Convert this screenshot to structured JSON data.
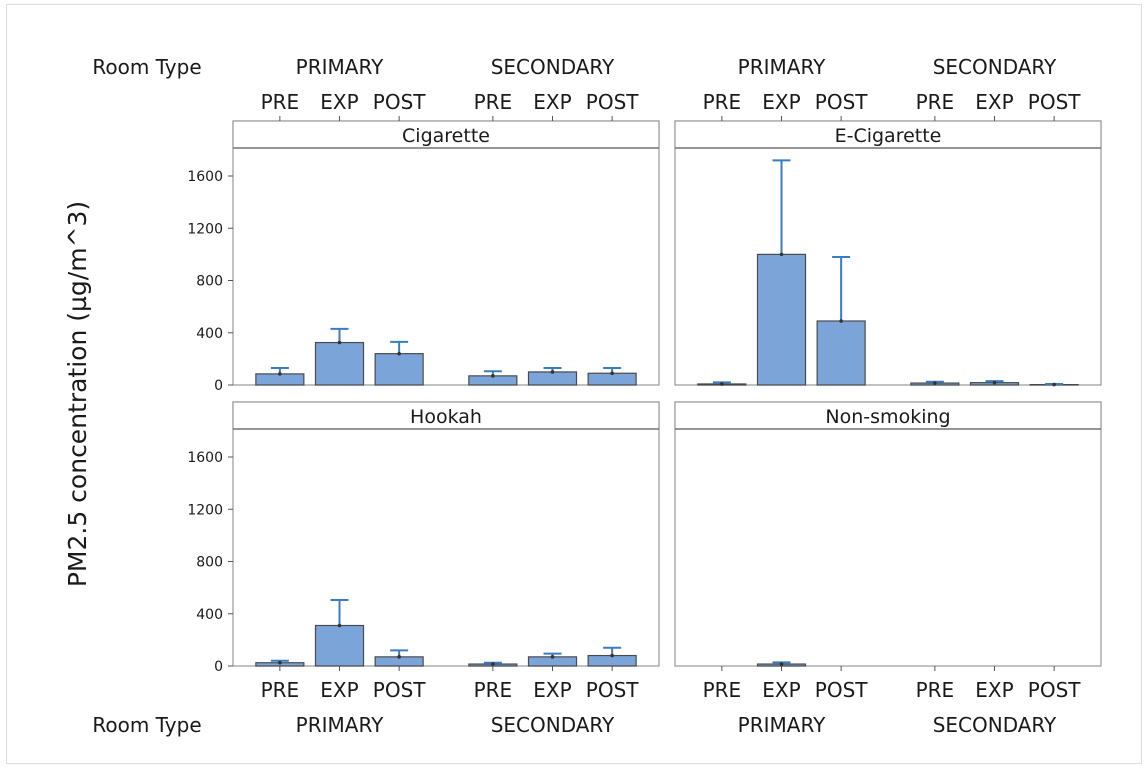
{
  "chart_data": {
    "type": "bar",
    "ylabel": "PM2.5 concentration (µg/m^3)",
    "group_label": "Room Type",
    "room_types": [
      "PRIMARY",
      "SECONDARY"
    ],
    "phases": [
      "PRE",
      "EXP",
      "POST"
    ],
    "ylim": [
      0,
      1800
    ],
    "yticks": [
      0,
      400,
      800,
      1200,
      1600
    ],
    "grid": false,
    "bar_color": "#7ba4d9",
    "errorbar_color": "#3a7cc4",
    "panels": [
      {
        "name": "Cigarette",
        "values": [
          {
            "room": "PRIMARY",
            "phase": "PRE",
            "value": 85,
            "error_upper": 130
          },
          {
            "room": "PRIMARY",
            "phase": "EXP",
            "value": 325,
            "error_upper": 430
          },
          {
            "room": "PRIMARY",
            "phase": "POST",
            "value": 240,
            "error_upper": 330
          },
          {
            "room": "SECONDARY",
            "phase": "PRE",
            "value": 70,
            "error_upper": 105
          },
          {
            "room": "SECONDARY",
            "phase": "EXP",
            "value": 100,
            "error_upper": 130
          },
          {
            "room": "SECONDARY",
            "phase": "POST",
            "value": 90,
            "error_upper": 130
          }
        ]
      },
      {
        "name": "E-Cigarette",
        "values": [
          {
            "room": "PRIMARY",
            "phase": "PRE",
            "value": 8,
            "error_upper": 20
          },
          {
            "room": "PRIMARY",
            "phase": "EXP",
            "value": 1000,
            "error_upper": 1720
          },
          {
            "room": "PRIMARY",
            "phase": "POST",
            "value": 490,
            "error_upper": 980
          },
          {
            "room": "SECONDARY",
            "phase": "PRE",
            "value": 15,
            "error_upper": 25
          },
          {
            "room": "SECONDARY",
            "phase": "EXP",
            "value": 18,
            "error_upper": 30
          },
          {
            "room": "SECONDARY",
            "phase": "POST",
            "value": 3,
            "error_upper": 8
          }
        ]
      },
      {
        "name": "Hookah",
        "values": [
          {
            "room": "PRIMARY",
            "phase": "PRE",
            "value": 25,
            "error_upper": 40
          },
          {
            "room": "PRIMARY",
            "phase": "EXP",
            "value": 310,
            "error_upper": 505
          },
          {
            "room": "PRIMARY",
            "phase": "POST",
            "value": 70,
            "error_upper": 120
          },
          {
            "room": "SECONDARY",
            "phase": "PRE",
            "value": 15,
            "error_upper": 25
          },
          {
            "room": "SECONDARY",
            "phase": "EXP",
            "value": 70,
            "error_upper": 95
          },
          {
            "room": "SECONDARY",
            "phase": "POST",
            "value": 80,
            "error_upper": 140
          }
        ]
      },
      {
        "name": "Non-smoking",
        "values": [
          {
            "room": "PRIMARY",
            "phase": "PRE",
            "value": 0,
            "error_upper": 0
          },
          {
            "room": "PRIMARY",
            "phase": "EXP",
            "value": 15,
            "error_upper": 28
          },
          {
            "room": "PRIMARY",
            "phase": "POST",
            "value": 0,
            "error_upper": 0
          },
          {
            "room": "SECONDARY",
            "phase": "PRE",
            "value": 0,
            "error_upper": 0
          },
          {
            "room": "SECONDARY",
            "phase": "EXP",
            "value": 0,
            "error_upper": 0
          },
          {
            "room": "SECONDARY",
            "phase": "POST",
            "value": 0,
            "error_upper": 0
          }
        ]
      }
    ]
  }
}
